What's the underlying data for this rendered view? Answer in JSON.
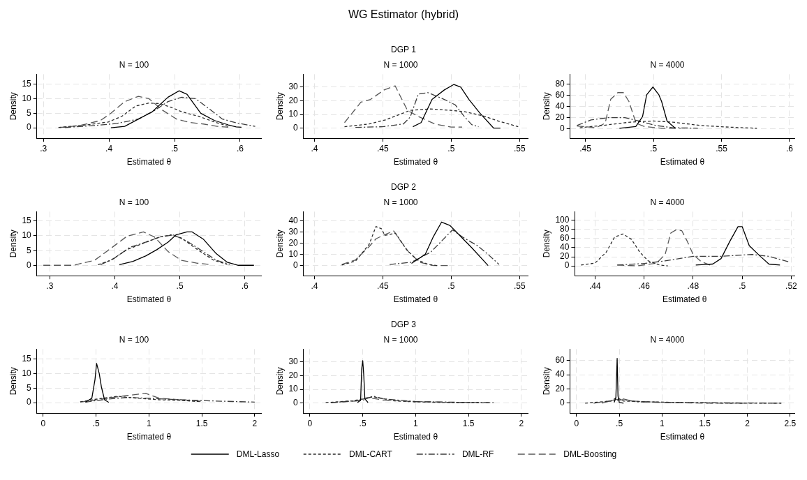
{
  "chart_data": [
    {
      "type": "other",
      "title": "WG Estimator (hybrid)"
    },
    {
      "type": "line",
      "title": "N = 100",
      "xlabel": "Estimated θ",
      "ylabel": "Density",
      "grid": true,
      "xlim": [
        0.29,
        0.632
      ],
      "ylim": [
        -3.6,
        18.4
      ],
      "xticks": [
        {
          "value": 0.3,
          "label": ".3"
        },
        {
          "value": 0.4,
          "label": ".4"
        },
        {
          "value": 0.5,
          "label": ".5"
        },
        {
          "value": 0.6,
          "label": ".6"
        }
      ],
      "yticks": [
        0,
        5,
        10,
        15
      ],
      "series": [
        {
          "color": "#000000",
          "line_style": "solid",
          "x": [
            0.403,
            0.424,
            0.445,
            0.466,
            0.478,
            0.49,
            0.507,
            0.519,
            0.54,
            0.561,
            0.582,
            0.594,
            0.602
          ],
          "values": [
            0,
            0.5,
            3,
            5.5,
            8,
            10.5,
            12.7,
            11.5,
            5,
            2.5,
            1,
            0.3,
            0.2
          ]
        },
        {
          "color": "#2b2b2b",
          "line_style": "dashed",
          "x": [
            0.323,
            0.366,
            0.399,
            0.42,
            0.441,
            0.461,
            0.478,
            0.495,
            0.511,
            0.536,
            0.561,
            0.582
          ],
          "values": [
            0.1,
            1,
            2,
            4,
            7.5,
            8.5,
            8.3,
            7,
            5.5,
            4,
            2,
            0.5
          ]
        },
        {
          "color": "#3c3c3c",
          "line_style": "dashdot",
          "x": [
            0.333,
            0.379,
            0.412,
            0.445,
            0.47,
            0.49,
            0.511,
            0.532,
            0.553,
            0.573,
            0.594,
            0.623
          ],
          "values": [
            0.1,
            0.8,
            1.5,
            3,
            6,
            9,
            10.5,
            10,
            6.5,
            3,
            1.7,
            0.5
          ]
        },
        {
          "color": "#595959",
          "line_style": "longdash",
          "x": [
            0.325,
            0.354,
            0.387,
            0.403,
            0.424,
            0.445,
            0.461,
            0.482,
            0.503,
            0.524,
            0.544,
            0.565,
            0.582
          ],
          "values": [
            0.1,
            0.7,
            2.5,
            5,
            9,
            10.8,
            10,
            6,
            3,
            1.8,
            1.3,
            0.5,
            0.2
          ]
        }
      ]
    },
    {
      "type": "line",
      "title": "N = 1000",
      "subtitle": "DGP 1",
      "xlabel": "Estimated θ",
      "ylabel": "Density",
      "grid": true,
      "xlim": [
        0.392,
        0.556
      ],
      "ylim": [
        -7.5,
        39.5
      ],
      "xticks": [
        {
          "value": 0.4,
          "label": ".4"
        },
        {
          "value": 0.45,
          "label": ".45"
        },
        {
          "value": 0.5,
          "label": ".5"
        },
        {
          "value": 0.55,
          "label": ".55"
        }
      ],
      "yticks": [
        0,
        10,
        20,
        30
      ],
      "series": [
        {
          "color": "#000000",
          "line_style": "solid",
          "x": [
            0.472,
            0.478,
            0.486,
            0.495,
            0.502,
            0.507,
            0.513,
            0.521,
            0.531,
            0.536
          ],
          "values": [
            1,
            4,
            21,
            28,
            32,
            30,
            21,
            11,
            0,
            0
          ]
        },
        {
          "color": "#2b2b2b",
          "line_style": "dashed",
          "x": [
            0.422,
            0.44,
            0.452,
            0.47,
            0.485,
            0.5,
            0.51,
            0.523,
            0.535,
            0.549
          ],
          "values": [
            1,
            3,
            6,
            13,
            14,
            13,
            12,
            9,
            5,
            1
          ]
        },
        {
          "color": "#3c3c3c",
          "line_style": "dashdot",
          "x": [
            0.43,
            0.45,
            0.465,
            0.47,
            0.476,
            0.483,
            0.495,
            0.503,
            0.51,
            0.515,
            0.52
          ],
          "values": [
            0.5,
            1,
            3,
            8,
            25,
            26,
            21,
            17,
            8,
            2.5,
            1
          ]
        },
        {
          "color": "#595959",
          "line_style": "longdash",
          "x": [
            0.422,
            0.434,
            0.441,
            0.451,
            0.459,
            0.468,
            0.476,
            0.488,
            0.5,
            0.508
          ],
          "values": [
            4,
            19,
            21,
            28,
            31,
            13,
            8.5,
            3,
            0.7,
            0.7
          ]
        }
      ]
    },
    {
      "type": "line",
      "title": "N = 4000",
      "xlabel": "Estimated θ",
      "ylabel": "Density",
      "grid": true,
      "xlim": [
        0.4388,
        0.6036
      ],
      "ylim": [
        -17,
        98
      ],
      "xticks": [
        {
          "value": 0.45,
          "label": ".45"
        },
        {
          "value": 0.5,
          "label": ".5"
        },
        {
          "value": 0.55,
          "label": ".55"
        },
        {
          "value": 0.6,
          "label": ".6"
        }
      ],
      "yticks": [
        0,
        20,
        40,
        60,
        80
      ],
      "series": [
        {
          "color": "#000000",
          "line_style": "solid",
          "x": [
            0.475,
            0.487,
            0.492,
            0.495,
            0.4996,
            0.504,
            0.506,
            0.51,
            0.516
          ],
          "values": [
            1,
            4,
            22,
            61,
            75,
            61,
            49,
            14,
            1
          ]
        },
        {
          "color": "#2b2b2b",
          "line_style": "dashed",
          "x": [
            0.4459,
            0.4624,
            0.483,
            0.4996,
            0.5141,
            0.5347,
            0.5554,
            0.576
          ],
          "values": [
            2,
            6,
            12,
            14,
            12,
            6,
            3,
            1
          ]
        },
        {
          "color": "#3c3c3c",
          "line_style": "dashdot",
          "x": [
            0.4438,
            0.4541,
            0.4665,
            0.479,
            0.4893,
            0.4955,
            0.5017,
            0.5141,
            0.5326
          ],
          "values": [
            6,
            16,
            20,
            20,
            14,
            10,
            6,
            2,
            1
          ]
        },
        {
          "color": "#595959",
          "line_style": "longdash",
          "x": [
            0.4438,
            0.458,
            0.4645,
            0.4686,
            0.4738,
            0.4779,
            0.482,
            0.4872,
            0.4934,
            0.5058,
            0.52
          ],
          "values": [
            5,
            2,
            10,
            53,
            65,
            65,
            49,
            10,
            4,
            1,
            1
          ]
        }
      ]
    },
    {
      "type": "line",
      "title": "N = 100",
      "xlabel": "Estimated θ",
      "ylabel": "Density",
      "grid": true,
      "xlim": [
        0.28,
        0.625
      ],
      "ylim": [
        -3.4,
        18.1
      ],
      "xticks": [
        {
          "value": 0.3,
          "label": ".3"
        },
        {
          "value": 0.4,
          "label": ".4"
        },
        {
          "value": 0.5,
          "label": ".5"
        },
        {
          "value": 0.6,
          "label": ".6"
        }
      ],
      "yticks": [
        0,
        5,
        10,
        15
      ],
      "series": [
        {
          "color": "#000000",
          "line_style": "solid",
          "x": [
            0.407,
            0.428,
            0.448,
            0.465,
            0.482,
            0.494,
            0.511,
            0.519,
            0.536,
            0.556,
            0.573,
            0.59,
            0.614
          ],
          "values": [
            0.3,
            1.4,
            3.3,
            5.4,
            7.9,
            10.3,
            11.3,
            11.3,
            8.9,
            4,
            1.1,
            0.1,
            0.1
          ]
        },
        {
          "color": "#2b2b2b",
          "line_style": "dashed",
          "x": [
            0.374,
            0.394,
            0.419,
            0.444,
            0.469,
            0.486,
            0.502,
            0.527,
            0.552,
            0.573
          ],
          "values": [
            0.3,
            1.8,
            5.4,
            7.5,
            9.6,
            10.3,
            9.3,
            5.4,
            1.8,
            0.4
          ]
        },
        {
          "color": "#3c3c3c",
          "line_style": "dashdot",
          "x": [
            0.378,
            0.398,
            0.423,
            0.448,
            0.469,
            0.49,
            0.511,
            0.536,
            0.556,
            0.577
          ],
          "values": [
            0.3,
            2.3,
            6.1,
            7.9,
            9.6,
            10.3,
            8.2,
            4.7,
            1.8,
            0.4
          ]
        },
        {
          "color": "#595959",
          "line_style": "longdash",
          "x": [
            0.29,
            0.336,
            0.369,
            0.394,
            0.419,
            0.444,
            0.461,
            0.482,
            0.502,
            0.527,
            0.544
          ],
          "values": [
            0.1,
            0.1,
            1.8,
            5.8,
            9.9,
            11.3,
            9.6,
            4.7,
            1.8,
            0.8,
            0.4
          ]
        }
      ]
    },
    {
      "type": "line",
      "title": "N = 1000",
      "subtitle": "DGP 2",
      "xlabel": "Estimated θ",
      "ylabel": "Density",
      "grid": true,
      "xlim": [
        0.392,
        0.556
      ],
      "ylim": [
        -9.1,
        48.3
      ],
      "xticks": [
        {
          "value": 0.4,
          "label": ".4"
        },
        {
          "value": 0.45,
          "label": ".45"
        },
        {
          "value": 0.5,
          "label": ".5"
        },
        {
          "value": 0.55,
          "label": ".55"
        }
      ],
      "yticks": [
        0,
        10,
        20,
        30,
        40
      ],
      "series": [
        {
          "color": "#000000",
          "line_style": "solid",
          "x": [
            0.471,
            0.481,
            0.487,
            0.493,
            0.499,
            0.507,
            0.515,
            0.527
          ],
          "values": [
            2,
            10,
            26,
            39,
            36,
            26,
            16,
            0
          ]
        },
        {
          "color": "#2b2b2b",
          "line_style": "dashed",
          "x": [
            0.42,
            0.43,
            0.44,
            0.445,
            0.449,
            0.4515,
            0.4593,
            0.4675,
            0.4753,
            0.4831,
            0.49
          ],
          "values": [
            0.5,
            4,
            19,
            35,
            33,
            27,
            29,
            14,
            5,
            1,
            0
          ]
        },
        {
          "color": "#3c3c3c",
          "line_style": "dashdot",
          "x": [
            0.455,
            0.471,
            0.485,
            0.493,
            0.501,
            0.509,
            0.519,
            0.527,
            0.535
          ],
          "values": [
            1,
            3,
            12,
            22,
            32,
            25,
            18,
            10,
            1
          ]
        },
        {
          "color": "#595959",
          "line_style": "longdash",
          "x": [
            0.42,
            0.43,
            0.44,
            0.445,
            0.452,
            0.458,
            0.463,
            0.469,
            0.477,
            0.487,
            0.499
          ],
          "values": [
            1,
            5,
            17,
            24,
            28,
            31,
            22,
            12,
            3,
            0,
            0
          ]
        }
      ]
    },
    {
      "type": "line",
      "title": "N = 4000",
      "xlabel": "Estimated θ",
      "ylabel": "Density",
      "grid": true,
      "xlim": [
        0.4318,
        0.5213
      ],
      "ylim": [
        -21.5,
        118.7
      ],
      "xticks": [
        {
          "value": 0.44,
          "label": ".44"
        },
        {
          "value": 0.46,
          "label": ".46"
        },
        {
          "value": 0.48,
          "label": ".48"
        },
        {
          "value": 0.5,
          "label": ".5"
        },
        {
          "value": 0.52,
          "label": ".52"
        }
      ],
      "yticks": [
        0,
        20,
        40,
        60,
        80,
        100
      ],
      "series": [
        {
          "color": "#000000",
          "line_style": "solid",
          "x": [
            0.4811,
            0.488,
            0.4914,
            0.4949,
            0.4983,
            0.5,
            0.5029,
            0.5074,
            0.5109,
            0.5154
          ],
          "values": [
            2,
            4,
            16,
            53,
            86,
            86,
            44,
            21,
            4,
            2
          ]
        },
        {
          "color": "#2b2b2b",
          "line_style": "dashed",
          "x": [
            0.4343,
            0.44,
            0.4446,
            0.448,
            0.4514,
            0.4549,
            0.4583,
            0.4617,
            0.4663,
            0.4697
          ],
          "values": [
            2,
            6,
            30,
            63,
            70,
            58,
            30,
            11,
            2,
            0
          ]
        },
        {
          "color": "#3c3c3c",
          "line_style": "dashdot",
          "x": [
            0.4491,
            0.4594,
            0.4686,
            0.48,
            0.4914,
            0.504,
            0.5109,
            0.5189
          ],
          "values": [
            2,
            5,
            11,
            21,
            21,
            25,
            21,
            9
          ]
        },
        {
          "color": "#595959",
          "line_style": "longdash",
          "x": [
            0.4491,
            0.4571,
            0.4651,
            0.4686,
            0.4709,
            0.4731,
            0.4754,
            0.4777,
            0.48,
            0.4834,
            0.4869
          ],
          "values": [
            2,
            0,
            6,
            25,
            72,
            79,
            77,
            53,
            25,
            9,
            2
          ]
        }
      ]
    },
    {
      "type": "line",
      "title": "N = 100",
      "xlabel": "Estimated θ",
      "ylabel": "Density",
      "grid": true,
      "xlim": [
        -0.06,
        2.06
      ],
      "ylim": [
        -3.6,
        18.4
      ],
      "xticks": [
        0,
        {
          "value": 0.5,
          "label": ".5"
        },
        1,
        1.5,
        2
      ],
      "yticks": [
        0,
        5,
        10,
        15
      ],
      "series": [
        {
          "color": "#000000",
          "line_style": "solid",
          "x": [
            0.4,
            0.46,
            0.49,
            0.505,
            0.53,
            0.55,
            0.58,
            0.62
          ],
          "values": [
            0.2,
            1.5,
            8,
            13.5,
            10,
            5.5,
            1,
            0.1
          ]
        },
        {
          "color": "#2b2b2b",
          "line_style": "dashed",
          "x": [
            0.35,
            0.5,
            0.7,
            0.9,
            1.1,
            1.3,
            1.5
          ],
          "values": [
            0.3,
            1.2,
            2.2,
            1.5,
            1,
            0.8,
            0.3
          ]
        },
        {
          "color": "#3c3c3c",
          "line_style": "dashdot",
          "x": [
            0.4,
            0.6,
            0.8,
            1,
            1.3,
            1.6,
            2
          ],
          "values": [
            0.2,
            1.2,
            1.8,
            1.5,
            1,
            0.6,
            0.2
          ]
        },
        {
          "color": "#595959",
          "line_style": "longdash",
          "x": [
            0.35,
            0.6,
            0.8,
            0.97,
            1.1,
            1.3,
            1.5
          ],
          "values": [
            0.2,
            1.5,
            2.5,
            3.2,
            1.5,
            1,
            0.5
          ]
        }
      ]
    },
    {
      "type": "line",
      "title": "N = 1000",
      "subtitle": "DGP 3",
      "xlabel": "Estimated θ",
      "ylabel": "Density",
      "grid": true,
      "legend": "bottom",
      "xlim": [
        -0.06,
        2.06
      ],
      "ylim": [
        -7.5,
        39.5
      ],
      "xticks": [
        0,
        {
          "value": 0.5,
          "label": ".5"
        },
        1,
        1.5,
        2
      ],
      "yticks": [
        0,
        10,
        20,
        30
      ],
      "series": [
        {
          "name": "DML-Lasso",
          "color": "#000000",
          "line_style": "solid",
          "x": [
            0.45,
            0.48,
            0.49,
            0.5,
            0.51,
            0.52,
            0.55
          ],
          "values": [
            0.3,
            2,
            25,
            31,
            20,
            3,
            0.3
          ]
        },
        {
          "name": "DML-CART",
          "color": "#2b2b2b",
          "line_style": "dashed",
          "x": [
            0.15,
            0.4,
            0.5,
            0.6,
            0.8,
            1,
            1.3,
            1.7
          ],
          "values": [
            0.3,
            1.5,
            3,
            4.5,
            1.5,
            0.8,
            0.3,
            0.1
          ]
        },
        {
          "name": "DML-RF",
          "color": "#3c3c3c",
          "line_style": "dashdot",
          "x": [
            0.2,
            0.5,
            0.6,
            0.7,
            1,
            1.4,
            1.75
          ],
          "values": [
            0.2,
            2,
            5,
            3,
            1,
            0.5,
            0.2
          ]
        },
        {
          "name": "DML-Boosting",
          "color": "#595959",
          "line_style": "longdash",
          "x": [
            0.2,
            0.45,
            0.55,
            0.7,
            1,
            1.3,
            1.6
          ],
          "values": [
            0.2,
            1.5,
            4,
            2,
            1,
            0.5,
            0.2
          ]
        }
      ]
    },
    {
      "type": "line",
      "title": "N = 4000",
      "xlabel": "Estimated θ",
      "ylabel": "Density",
      "grid": true,
      "xlim": [
        -0.075,
        2.55
      ],
      "ylim": [
        -14,
        76
      ],
      "xticks": [
        0,
        {
          "value": 0.5,
          "label": ".5"
        },
        1,
        1.5,
        2,
        2.5
      ],
      "yticks": [
        0,
        20,
        40,
        60
      ],
      "series": [
        {
          "color": "#000000",
          "line_style": "solid",
          "x": [
            0.44,
            0.46,
            0.475,
            0.485,
            0.5,
            0.55
          ],
          "values": [
            1,
            8,
            63,
            10,
            1,
            0
          ]
        },
        {
          "color": "#2b2b2b",
          "line_style": "dashed",
          "x": [
            0.1,
            0.4,
            0.47,
            0.55,
            0.8,
            1.2,
            1.8,
            2.4
          ],
          "values": [
            0,
            3,
            8,
            3,
            2,
            1,
            0,
            0
          ]
        },
        {
          "color": "#3c3c3c",
          "line_style": "dashdot",
          "x": [
            0.2,
            0.45,
            0.55,
            0.7,
            1.2,
            2.4
          ],
          "values": [
            0,
            4,
            5,
            2,
            1,
            0
          ]
        },
        {
          "color": "#595959",
          "line_style": "longdash",
          "x": [
            0.3,
            0.45,
            0.55,
            0.65,
            1,
            1.5,
            2
          ],
          "values": [
            0,
            5,
            6,
            3,
            1,
            0,
            0
          ]
        }
      ]
    }
  ]
}
